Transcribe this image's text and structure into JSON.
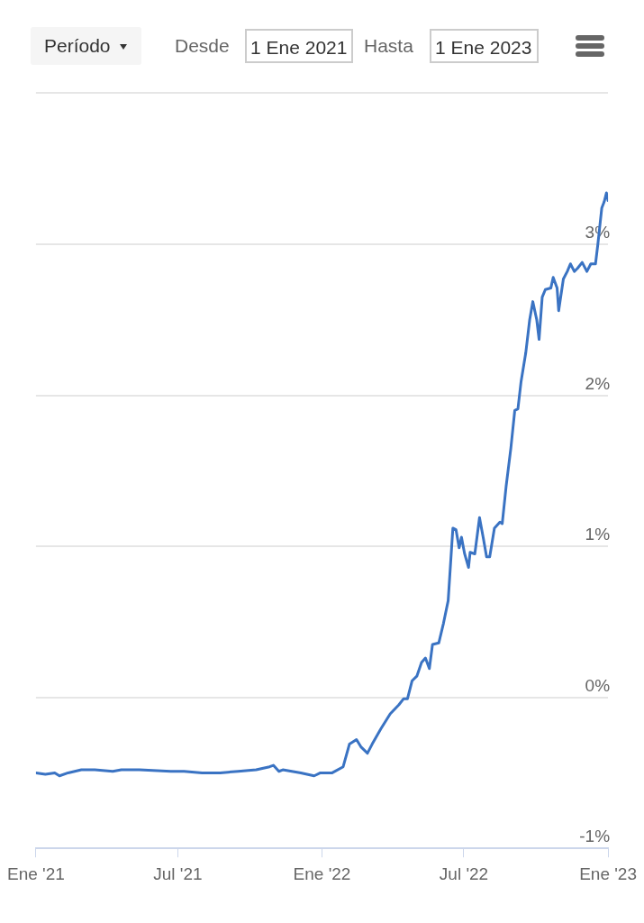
{
  "chart_data": {
    "type": "line",
    "annotations": [
      "Período",
      "Desde",
      "1 Ene 2021",
      "Hasta",
      "1 Ene 2023"
    ],
    "x": [
      "2021-01-01",
      "2021-01-13",
      "2021-01-25",
      "2021-01-31",
      "2021-02-11",
      "2021-02-28",
      "2021-03-17",
      "2021-04-09",
      "2021-04-20",
      "2021-05-13",
      "2021-06-22",
      "2021-07-09",
      "2021-08-01",
      "2021-08-24",
      "2021-09-16",
      "2021-10-09",
      "2021-10-26",
      "2021-10-31",
      "2021-11-07",
      "2021-11-12",
      "2021-12-05",
      "2021-12-22",
      "2021-12-30",
      "2022-01-14",
      "2022-01-28",
      "2022-02-05",
      "2022-02-14",
      "2022-02-20",
      "2022-02-28",
      "2022-03-06",
      "2022-03-17",
      "2022-03-29",
      "2022-04-09",
      "2022-04-15",
      "2022-04-20",
      "2022-04-26",
      "2022-05-02",
      "2022-05-08",
      "2022-05-13",
      "2022-05-18",
      "2022-05-22",
      "2022-05-30",
      "2022-06-05",
      "2022-06-11",
      "2022-06-17",
      "2022-06-21",
      "2022-06-25",
      "2022-06-28",
      "2022-07-02",
      "2022-07-07",
      "2022-07-09",
      "2022-07-15",
      "2022-07-21",
      "2022-07-26",
      "2022-07-30",
      "2022-08-03",
      "2022-08-09",
      "2022-08-16",
      "2022-08-19",
      "2022-08-24",
      "2022-08-30",
      "2022-09-04",
      "2022-09-08",
      "2022-09-12",
      "2022-09-18",
      "2022-09-23",
      "2022-09-27",
      "2022-10-02",
      "2022-10-05",
      "2022-10-09",
      "2022-10-13",
      "2022-10-20",
      "2022-10-23",
      "2022-10-28",
      "2022-10-30",
      "2022-11-05",
      "2022-11-10",
      "2022-11-14",
      "2022-11-19",
      "2022-11-23",
      "2022-11-29",
      "2022-12-05",
      "2022-12-10",
      "2022-12-16",
      "2022-12-19",
      "2022-12-24",
      "2022-12-27",
      "2022-12-30",
      "2023-01-01"
    ],
    "series": [
      {
        "color": "#3a73c3",
        "values": [
          -0.5,
          -0.51,
          -0.5,
          -0.52,
          -0.5,
          -0.48,
          -0.48,
          -0.49,
          -0.48,
          -0.48,
          -0.49,
          -0.49,
          -0.5,
          -0.5,
          -0.49,
          -0.48,
          -0.46,
          -0.45,
          -0.49,
          -0.48,
          -0.5,
          -0.52,
          -0.5,
          -0.5,
          -0.46,
          -0.31,
          -0.28,
          -0.33,
          -0.37,
          -0.31,
          -0.21,
          -0.11,
          -0.05,
          -0.01,
          -0.01,
          0.11,
          0.14,
          0.23,
          0.26,
          0.19,
          0.35,
          0.36,
          0.49,
          0.64,
          1.12,
          1.11,
          0.99,
          1.06,
          0.95,
          0.86,
          0.96,
          0.95,
          1.19,
          1.05,
          0.93,
          0.93,
          1.12,
          1.16,
          1.15,
          1.4,
          1.65,
          1.9,
          1.91,
          2.09,
          2.28,
          2.5,
          2.62,
          2.5,
          2.37,
          2.65,
          2.7,
          2.71,
          2.78,
          2.71,
          2.56,
          2.77,
          2.82,
          2.87,
          2.82,
          2.84,
          2.88,
          2.82,
          2.87,
          2.87,
          3.0,
          3.24,
          3.28,
          3.34,
          3.29
        ]
      }
    ],
    "xlim": [
      "2021-01-01",
      "2023-01-01"
    ],
    "xticks": [
      {
        "value": "2021-01-01",
        "label": "Ene '21"
      },
      {
        "value": "2021-07-01",
        "label": "Jul '21"
      },
      {
        "value": "2022-01-01",
        "label": "Ene '22"
      },
      {
        "value": "2022-07-01",
        "label": "Jul '22"
      },
      {
        "value": "2023-01-01",
        "label": "Ene '23"
      }
    ],
    "ylim": [
      -1,
      4
    ],
    "yticks": [
      {
        "value": -1,
        "label": "-1%"
      },
      {
        "value": 0,
        "label": "0%"
      },
      {
        "value": 1,
        "label": "1%"
      },
      {
        "value": 2,
        "label": "2%"
      },
      {
        "value": 3,
        "label": "3%"
      },
      {
        "value": 4,
        "label": null
      }
    ],
    "grid": "y",
    "legend": false,
    "marker": "none",
    "line_style": "solid"
  }
}
